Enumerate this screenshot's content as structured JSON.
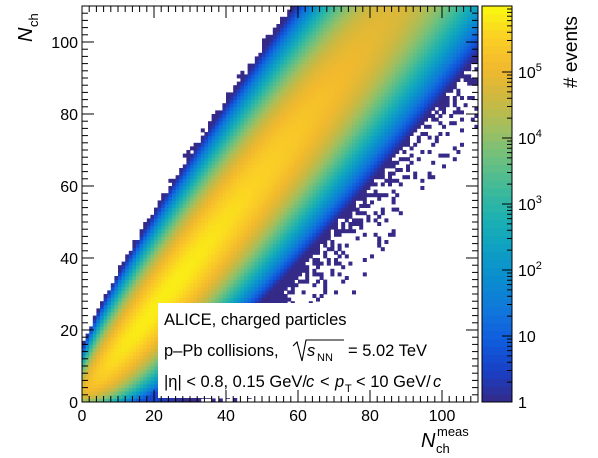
{
  "chart_data": {
    "type": "heatmap",
    "title": "",
    "xlabel": {
      "main": "N",
      "sub": "ch",
      "sup": "meas"
    },
    "ylabel": {
      "main": "N",
      "sub": "ch"
    },
    "xlim": [
      0,
      110
    ],
    "ylim": [
      0,
      110
    ],
    "x_ticks": [
      0,
      20,
      40,
      60,
      80,
      100
    ],
    "y_ticks": [
      0,
      20,
      40,
      60,
      80,
      100
    ],
    "color_scale": "log",
    "colorbar": {
      "label": "# events",
      "range": [
        1,
        1000000
      ],
      "ticks": [
        {
          "value": 1,
          "base": "1",
          "exp": ""
        },
        {
          "value": 10,
          "base": "10",
          "exp": ""
        },
        {
          "value": 100,
          "base": "10",
          "exp": "2"
        },
        {
          "value": 1000,
          "base": "10",
          "exp": "3"
        },
        {
          "value": 10000,
          "base": "10",
          "exp": "4"
        },
        {
          "value": 100000,
          "base": "10",
          "exp": "5"
        }
      ],
      "palette": [
        "#352a87",
        "#1a3fc4",
        "#0f5cdd",
        "#1176db",
        "#0a8ccf",
        "#0e9fc4",
        "#1bb0b2",
        "#3fba9a",
        "#6cc07f",
        "#a1bf5f",
        "#cfb83f",
        "#f2b92d",
        "#fbd025",
        "#f9fb0e"
      ]
    },
    "distribution": {
      "description": "correlation between measured and true charged-particle multiplicity",
      "ridge_slope": 1.28,
      "peak_x": 22,
      "peak_y": 28,
      "max_count": 700000,
      "ridge_end_x": 80,
      "ridge_end_y": 110,
      "tail_extends_to_x": 100
    },
    "annotations": {
      "line1": "ALICE, charged particles",
      "line2_prefix": "p–Pb collisions,",
      "line2_sqrt_s": "s",
      "line2_sqrt_sub": "NN",
      "line2_suffix": "= 5.02 TeV",
      "line3_prefix": "|η| < 0.8, 0.15 GeV/",
      "line3_c1": "c",
      "line3_mid": "<",
      "line3_p": "p",
      "line3_p_sub": "T",
      "line3_after_pt": "< 10 GeV/",
      "line3_c2": "c"
    }
  }
}
